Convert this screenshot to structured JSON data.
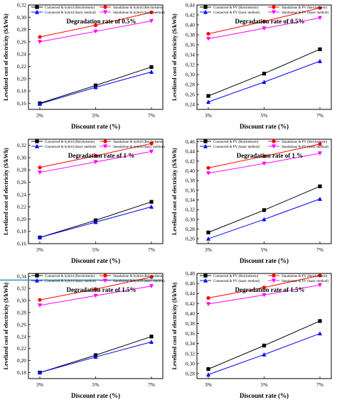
{
  "chart_data": [
    {
      "type": "line",
      "title": "Degradation rate of 0.5%",
      "xlabel": "Discount rate (%)",
      "ylabel": "Levelized cost of electricity ($/kWh)",
      "categories": [
        "3%",
        "5%",
        "7%"
      ],
      "ylim": [
        0.15,
        0.32
      ],
      "yticks": [
        "0,16",
        "0,18",
        "0,20",
        "0,22",
        "0,24",
        "0,26",
        "0,28",
        "0,30",
        "0,32"
      ],
      "legend": "top-left",
      "series": [
        {
          "name": "Connected & hybrid (Reichelstein)",
          "values": [
            0.16,
            0.189,
            0.219
          ],
          "color": "#000000",
          "marker": "square"
        },
        {
          "name": "Standalone & hybrid (Reichelstein)",
          "values": [
            0.268,
            0.287,
            0.308
          ],
          "color": "#ff0000",
          "marker": "circle"
        },
        {
          "name": "Connected & hybrid (basic method)",
          "values": [
            0.159,
            0.186,
            0.211
          ],
          "color": "#0000ff",
          "marker": "triangle-up"
        },
        {
          "name": "Standalone & hybrid (basic method)",
          "values": [
            0.26,
            0.277,
            0.294
          ],
          "color": "#ff00ff",
          "marker": "triangle-down"
        }
      ]
    },
    {
      "type": "line",
      "title": "Degradation rate of 0.5%",
      "xlabel": "Discount rate (%)",
      "ylabel": "Levelized cost of electricity ($/kWh)",
      "categories": [
        "3%",
        "5%",
        "7%"
      ],
      "ylim": [
        0.23,
        0.44
      ],
      "yticks": [
        "0,24",
        "0,26",
        "0,28",
        "0,30",
        "0,32",
        "0,34",
        "0,36",
        "0,38",
        "0,40",
        "0,42",
        "0,44"
      ],
      "legend": "top-left",
      "series": [
        {
          "name": "Connected & PV (Reichelstein)",
          "values": [
            0.257,
            0.302,
            0.351
          ],
          "color": "#000000",
          "marker": "square"
        },
        {
          "name": "Standalone & PV (Reichelstein)",
          "values": [
            0.382,
            0.407,
            0.434
          ],
          "color": "#ff0000",
          "marker": "circle"
        },
        {
          "name": "Connected & PV (basic method)",
          "values": [
            0.245,
            0.285,
            0.327
          ],
          "color": "#0000ff",
          "marker": "triangle-up"
        },
        {
          "name": "Standalone & PV (basic method)",
          "values": [
            0.372,
            0.393,
            0.414
          ],
          "color": "#ff00ff",
          "marker": "triangle-down"
        }
      ]
    },
    {
      "type": "line",
      "title": "Degradation rate of 1 %",
      "xlabel": "Discount rate (%)",
      "ylabel": "Levelized cost of electricity ($/kWh)",
      "categories": [
        "3%",
        "5%",
        "7%"
      ],
      "ylim": [
        0.16,
        0.33
      ],
      "yticks": [
        "0,16",
        "0,18",
        "0,20",
        "0,22",
        "0,24",
        "0,26",
        "0,28",
        "0,30",
        "0,32"
      ],
      "legend": "top-left",
      "series": [
        {
          "name": "Connected & hybrid (Reichelstein)",
          "values": [
            0.17,
            0.198,
            0.228
          ],
          "color": "#000000",
          "marker": "square"
        },
        {
          "name": "Standalone & hybrid (Reichelstein)",
          "values": [
            0.284,
            0.303,
            0.323
          ],
          "color": "#ff0000",
          "marker": "circle"
        },
        {
          "name": "Connected & hybrid (basic method)",
          "values": [
            0.17,
            0.195,
            0.22
          ],
          "color": "#0000ff",
          "marker": "triangle-up"
        },
        {
          "name": "Standalone & hybrid (basic method)",
          "values": [
            0.276,
            0.293,
            0.31
          ],
          "color": "#ff00ff",
          "marker": "triangle-down"
        }
      ]
    },
    {
      "type": "line",
      "title": "Degradation rate of 1 %",
      "xlabel": "Discount rate (%)",
      "ylabel": "Levelized cost of electricity ($/kWh)",
      "categories": [
        "3%",
        "5%",
        "7%"
      ],
      "ylim": [
        0.25,
        0.465
      ],
      "yticks": [
        "0,26",
        "0,28",
        "0,30",
        "0,32",
        "0,34",
        "0,36",
        "0,38",
        "0,40",
        "0,42",
        "0,44",
        "0,46"
      ],
      "legend": "top-left",
      "series": [
        {
          "name": "Connected & PV (Reichelstein)",
          "values": [
            0.273,
            0.319,
            0.368
          ],
          "color": "#000000",
          "marker": "square"
        },
        {
          "name": "Standalone & PV (Reichelstein)",
          "values": [
            0.406,
            0.43,
            0.455
          ],
          "color": "#ff0000",
          "marker": "circle"
        },
        {
          "name": "Connected & PV (basic method)",
          "values": [
            0.26,
            0.3,
            0.342
          ],
          "color": "#0000ff",
          "marker": "triangle-up"
        },
        {
          "name": "Standalone & PV (basic method)",
          "values": [
            0.395,
            0.415,
            0.436
          ],
          "color": "#ff00ff",
          "marker": "triangle-down"
        }
      ]
    },
    {
      "type": "line",
      "title": "Degradation rate of 1.5%",
      "xlabel": "Discount rate (%)",
      "ylabel": "Levelized cost of electricity ($/kWh)",
      "categories": [
        "3%",
        "5%",
        "7%"
      ],
      "ylim": [
        0.17,
        0.345
      ],
      "yticks": [
        "0,18",
        "0,20",
        "0,22",
        "0,24",
        "0,26",
        "0,28",
        "0,30",
        "0,32",
        "0,34"
      ],
      "legend": "top-left",
      "reference_line": {
        "value": 0.334,
        "color": "#2a8fc0"
      },
      "series": [
        {
          "name": "Connected & hybrid (Reichelstein)",
          "values": [
            0.18,
            0.209,
            0.24
          ],
          "color": "#000000",
          "marker": "square"
        },
        {
          "name": "Standalone & hybrid (Reichelstein)",
          "values": [
            0.301,
            0.319,
            0.339
          ],
          "color": "#ff0000",
          "marker": "circle"
        },
        {
          "name": "Connected & hybrid (basic method)",
          "values": [
            0.18,
            0.206,
            0.231
          ],
          "color": "#0000ff",
          "marker": "triangle-up"
        },
        {
          "name": "Standalone & hybrid (basic method)",
          "values": [
            0.292,
            0.308,
            0.324
          ],
          "color": "#ff00ff",
          "marker": "triangle-down"
        }
      ]
    },
    {
      "type": "line",
      "title": "Degradation rate of 1.5%",
      "xlabel": "Discount rate (%)",
      "ylabel": "Levelized cost of electricity ($/kWh)",
      "categories": [
        "3%",
        "5%",
        "7%"
      ],
      "ylim": [
        0.27,
        0.48
      ],
      "yticks": [
        "0,28",
        "0,30",
        "0,32",
        "0,34",
        "0,36",
        "0,38",
        "0,40",
        "0,42",
        "0,44",
        "0,46",
        "0,48"
      ],
      "legend": "top-left",
      "series": [
        {
          "name": "Connected & PV (Reichelstein)",
          "values": [
            0.289,
            0.336,
            0.385
          ],
          "color": "#000000",
          "marker": "square"
        },
        {
          "name": "Standalone & PV (Reichelstein)",
          "values": [
            0.431,
            0.452,
            0.476
          ],
          "color": "#ff0000",
          "marker": "circle"
        },
        {
          "name": "Connected & PV (basic method)",
          "values": [
            0.278,
            0.318,
            0.36
          ],
          "color": "#0000ff",
          "marker": "triangle-up"
        },
        {
          "name": "Standalone & PV (basic method)",
          "values": [
            0.419,
            0.437,
            0.457
          ],
          "color": "#ff00ff",
          "marker": "triangle-down"
        }
      ]
    }
  ]
}
